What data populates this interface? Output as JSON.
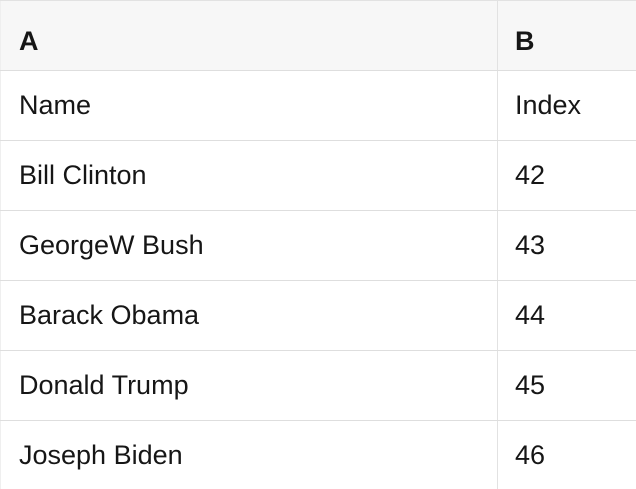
{
  "table": {
    "columns": [
      "A",
      "B"
    ],
    "rows": [
      [
        "Name",
        "Index"
      ],
      [
        "Bill Clinton",
        "42"
      ],
      [
        "GeorgeW Bush",
        "43"
      ],
      [
        "Barack Obama",
        "44"
      ],
      [
        "Donald Trump",
        "45"
      ],
      [
        "Joseph Biden",
        "46"
      ]
    ]
  },
  "colors": {
    "header_background": "#f7f7f7",
    "row_background": "#ffffff",
    "border": "#dedede",
    "column_divider": "#e2e2e2",
    "text": "#161616"
  }
}
